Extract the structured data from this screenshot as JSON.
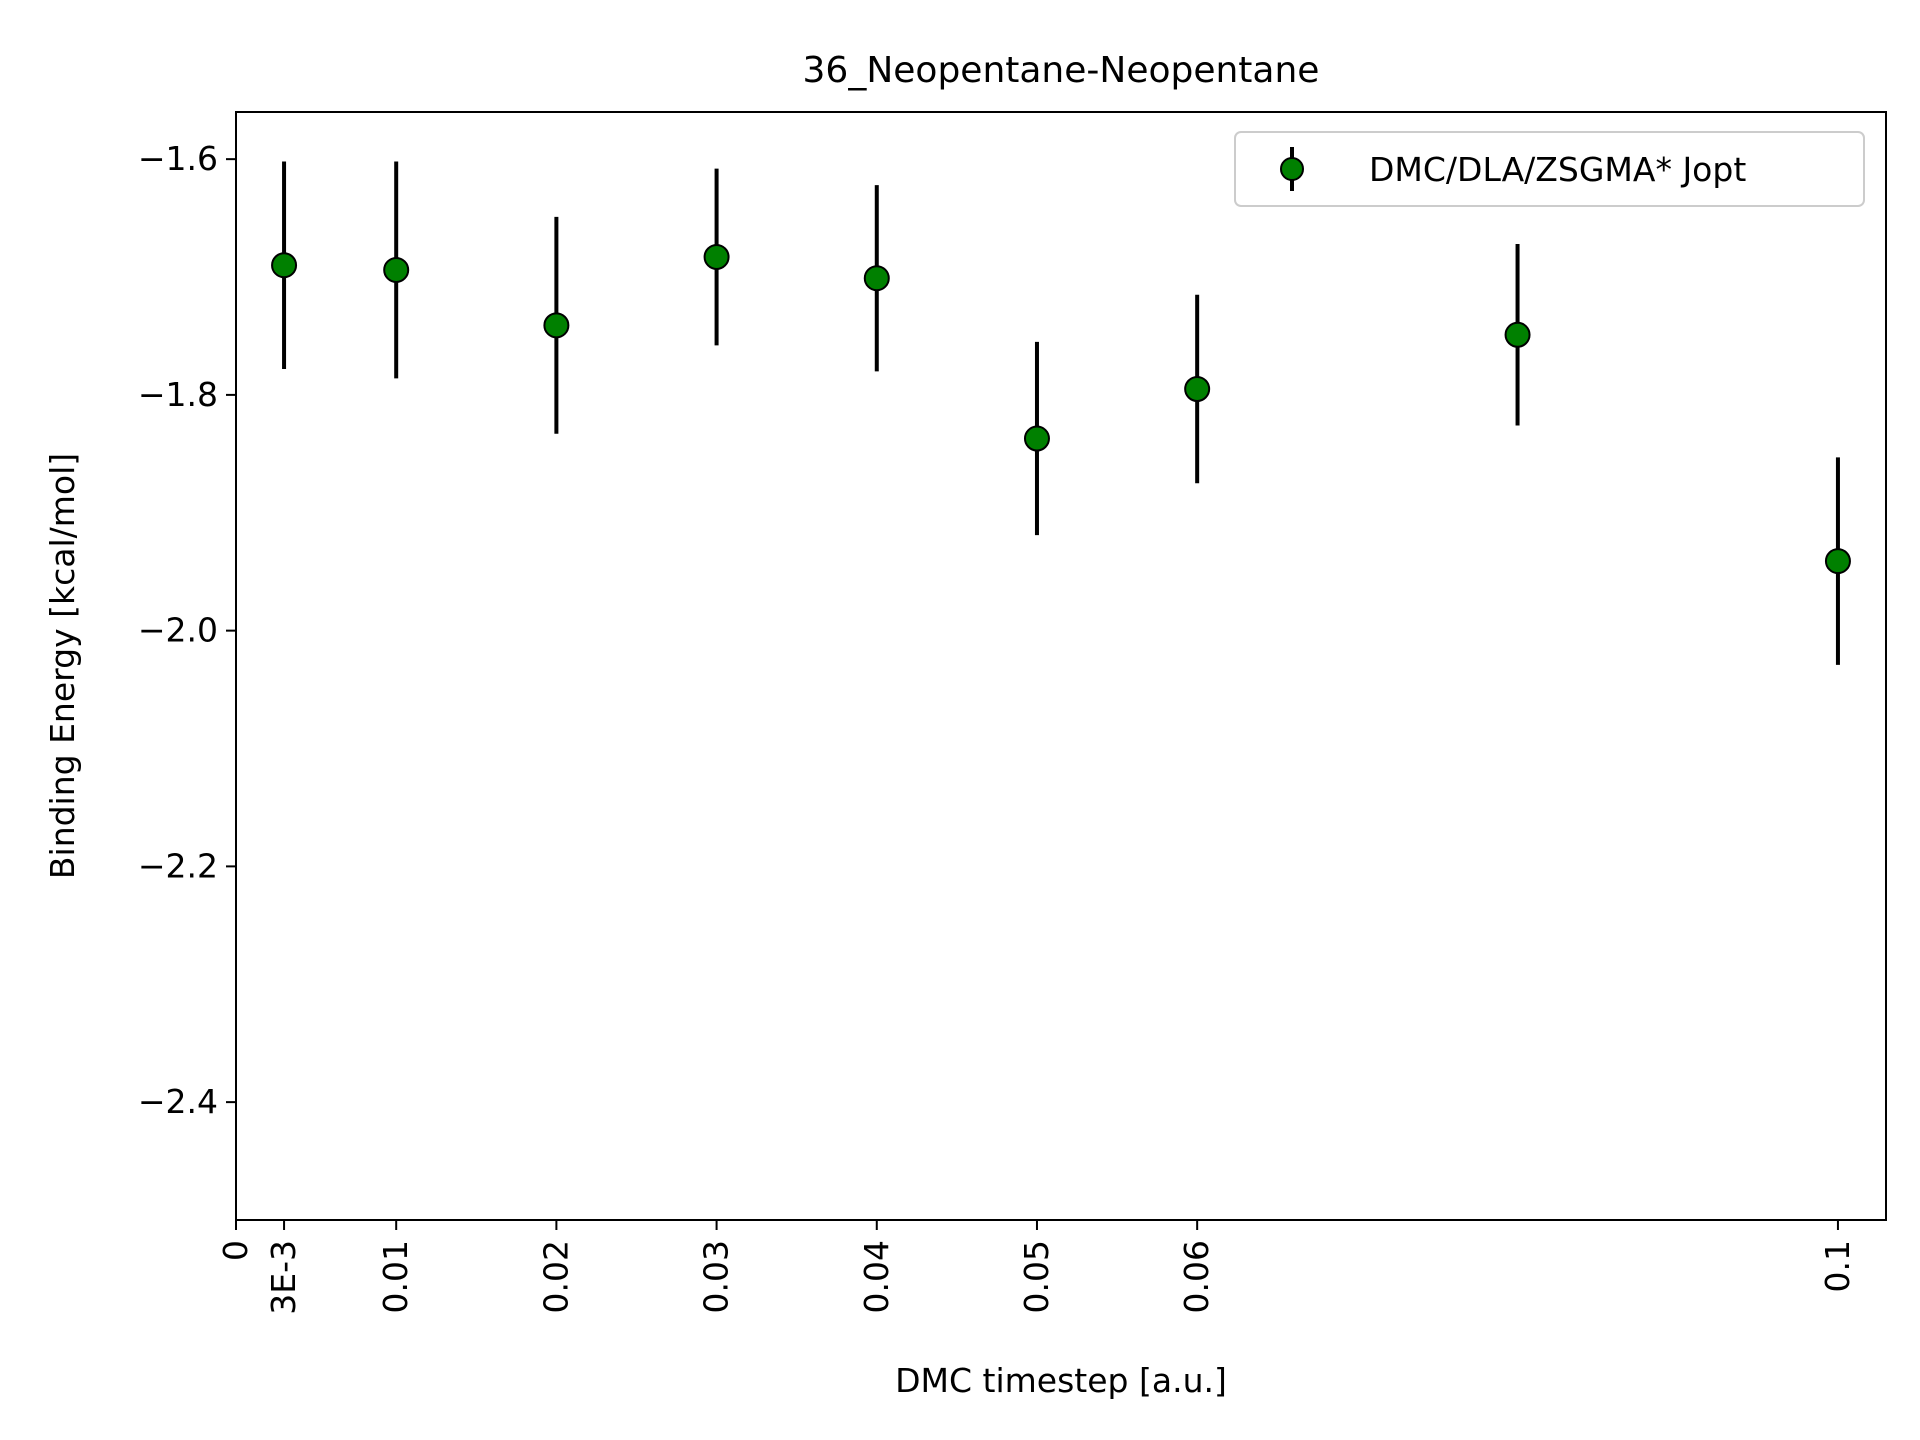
{
  "chart_data": {
    "type": "scatter",
    "title": "36_Neopentane-Neopentane",
    "xlabel": "DMC timestep [a.u.]",
    "ylabel": "Binding Energy [kcal/mol]",
    "xlim": [
      0,
      0.103
    ],
    "ylim": [
      -2.5,
      -1.56
    ],
    "x_ticks": [
      {
        "value": 0,
        "label": "0"
      },
      {
        "value": 0.003,
        "label": "3E-3"
      },
      {
        "value": 0.01,
        "label": "0.01"
      },
      {
        "value": 0.02,
        "label": "0.02"
      },
      {
        "value": 0.03,
        "label": "0.03"
      },
      {
        "value": 0.04,
        "label": "0.04"
      },
      {
        "value": 0.05,
        "label": "0.05"
      },
      {
        "value": 0.06,
        "label": "0.06"
      },
      {
        "value": 0.1,
        "label": "0.1"
      }
    ],
    "y_ticks": [
      {
        "value": -1.6,
        "label": "−1.6"
      },
      {
        "value": -1.8,
        "label": "−1.8"
      },
      {
        "value": -2.0,
        "label": "−2.0"
      },
      {
        "value": -2.2,
        "label": "−2.2"
      },
      {
        "value": -2.4,
        "label": "−2.4"
      }
    ],
    "grid": false,
    "legend_position": "top-right",
    "series": [
      {
        "name": "DMC/DLA/ZSGMA* Jopt",
        "color": "#008000",
        "edge_color": "#000000",
        "errorbar_color": "#000000",
        "points": [
          {
            "x": 0.003,
            "y": -1.69,
            "err": 0.088
          },
          {
            "x": 0.01,
            "y": -1.694,
            "err": 0.092
          },
          {
            "x": 0.02,
            "y": -1.741,
            "err": 0.092
          },
          {
            "x": 0.03,
            "y": -1.683,
            "err": 0.075
          },
          {
            "x": 0.04,
            "y": -1.701,
            "err": 0.079
          },
          {
            "x": 0.05,
            "y": -1.837,
            "err": 0.082
          },
          {
            "x": 0.06,
            "y": -1.795,
            "err": 0.08
          },
          {
            "x": 0.08,
            "y": -1.749,
            "err": 0.077
          },
          {
            "x": 0.1,
            "y": -1.941,
            "err": 0.088
          }
        ]
      }
    ]
  }
}
